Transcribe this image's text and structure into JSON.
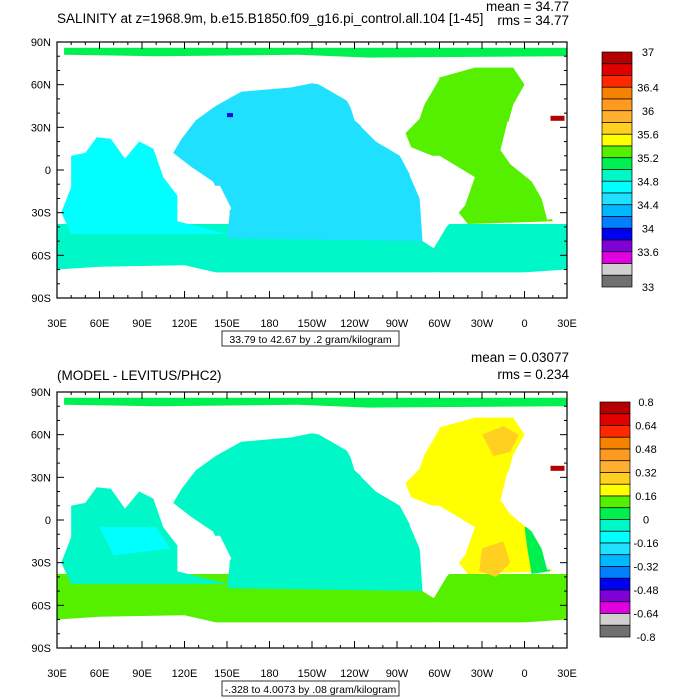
{
  "panels": [
    {
      "title": "SALINITY at z=1968.9m, b.e15.B1850.f09_g16.pi_control.all.104 [1-45]",
      "mean": "mean = 34.77",
      "rms": "rms = 34.77",
      "range_label": "33.79 to 42.67 by .2 gram/kilogram",
      "colorbar_labels": [
        "37",
        "36.4",
        "36",
        "35.6",
        "35.2",
        "34.8",
        "34.4",
        "34",
        "33.6",
        "33"
      ]
    },
    {
      "title": "(MODEL - LEVITUS/PHC2)",
      "mean": "mean = 0.03077",
      "rms": "rms = 0.234",
      "range_label": "-.328 to 4.0073 by .08 gram/kilogram",
      "colorbar_labels": [
        "0.8",
        "0.64",
        "0.48",
        "0.32",
        "0.16",
        "0",
        "-0.16",
        "-0.32",
        "-0.48",
        "-0.64",
        "-0.8"
      ]
    }
  ],
  "lat_labels": [
    "90N",
    "60N",
    "30N",
    "0",
    "30S",
    "60S",
    "90S"
  ],
  "lon_labels": [
    "30E",
    "60E",
    "90E",
    "120E",
    "150E",
    "180",
    "150W",
    "120W",
    "90W",
    "60W",
    "30W",
    "0",
    "30E"
  ],
  "colorbar_colors": [
    "#b40000",
    "#e00000",
    "#ff2800",
    "#f58200",
    "#ff9a20",
    "#ffb030",
    "#ffd020",
    "#ffff00",
    "#55f000",
    "#00f050",
    "#00f8c8",
    "#00ffff",
    "#20e0ff",
    "#00b8ff",
    "#0080ff",
    "#0000f0",
    "#8000d8",
    "#e000e0",
    "#d0d0d0",
    "#707070"
  ],
  "chart_data": [
    {
      "type": "heatmap",
      "title": "SALINITY at z=1968.9m, b.e15.B1850.f09_g16.pi_control.all.104 [1-45]",
      "units": "gram/kilogram",
      "mean": 34.77,
      "rms": 34.77,
      "xlim": [
        "30E",
        "30E"
      ],
      "ylim": [
        "90S",
        "90N"
      ],
      "contour_levels_labeled": [
        33,
        33.6,
        34,
        34.4,
        34.8,
        35.2,
        35.6,
        36,
        36.4,
        37
      ]
    },
    {
      "type": "heatmap",
      "title": "(MODEL - LEVITUS/PHC2)",
      "units": "gram/kilogram",
      "mean": 0.03077,
      "rms": 0.234,
      "xlim": [
        "30E",
        "30E"
      ],
      "ylim": [
        "90S",
        "90N"
      ],
      "contour_levels_labeled": [
        -0.8,
        -0.64,
        -0.48,
        -0.32,
        -0.16,
        0,
        0.16,
        0.32,
        0.48,
        0.64,
        0.8
      ]
    }
  ]
}
